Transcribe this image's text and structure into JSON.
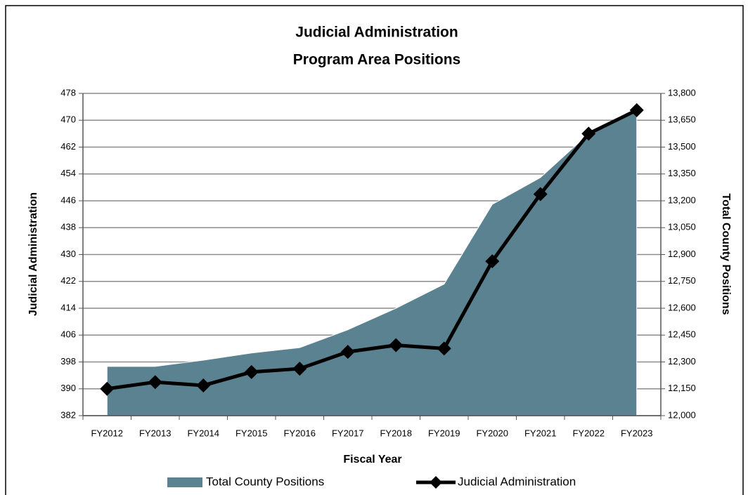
{
  "chart_data": {
    "type": "area-line",
    "title": [
      "Judicial Administration",
      "Program Area Positions"
    ],
    "x_label": "Fiscal Year",
    "y_label": "Judicial Administration",
    "y2_label": "Total County Positions",
    "categories": [
      "FY2012",
      "FY2013",
      "FY2014",
      "FY2015",
      "FY2016",
      "FY2017",
      "FY2018",
      "FY2019",
      "FY2020",
      "FY2021",
      "FY2022",
      "FY2023"
    ],
    "series": [
      {
        "name": "Total County Positions",
        "type": "area",
        "axis": "y2",
        "color": "#5b8290",
        "values": [
          12275,
          12275,
          12310,
          12350,
          12380,
          12480,
          12600,
          12735,
          13180,
          13330,
          13575,
          13700
        ]
      },
      {
        "name": "Judicial Administration",
        "type": "line",
        "color": "#000000",
        "values": [
          390,
          392,
          391,
          395,
          396,
          401,
          403,
          402,
          428,
          448,
          466,
          473
        ]
      }
    ],
    "ylim": [
      382,
      478
    ],
    "yticks": [
      382,
      390,
      398,
      406,
      414,
      422,
      430,
      438,
      446,
      454,
      462,
      470,
      478
    ],
    "y2lim": [
      12000,
      13800
    ],
    "y2ticks": [
      {
        "value": 12000,
        "label": "12,000"
      },
      {
        "value": 12150,
        "label": "12,150"
      },
      {
        "value": 12300,
        "label": "12,300"
      },
      {
        "value": 12450,
        "label": "12,450"
      },
      {
        "value": 12600,
        "label": "12,600"
      },
      {
        "value": 12750,
        "label": "12,750"
      },
      {
        "value": 12900,
        "label": "12,900"
      },
      {
        "value": 13050,
        "label": "13,050"
      },
      {
        "value": 13200,
        "label": "13,200"
      },
      {
        "value": 13350,
        "label": "13,350"
      },
      {
        "value": 13500,
        "label": "13,500"
      },
      {
        "value": 13650,
        "label": "13,650"
      },
      {
        "value": 13800,
        "label": "13,800"
      }
    ],
    "grid": true,
    "legend": "bottom"
  }
}
